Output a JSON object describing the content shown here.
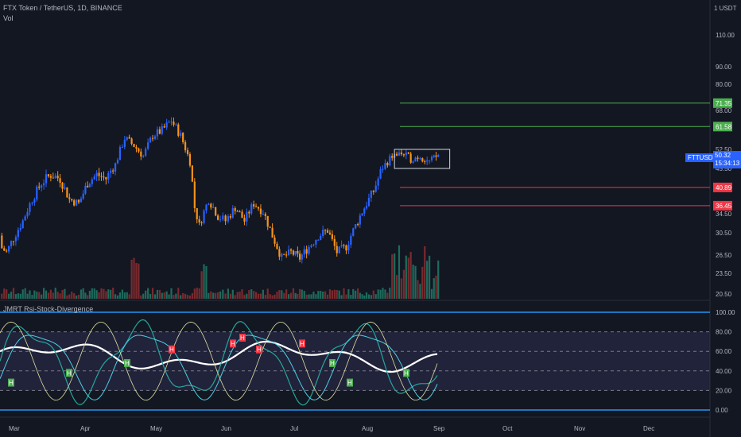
{
  "header": {
    "symbol_line": "FTX Token / TetherUS, 1D, BINANCE",
    "volume_label": "Vol",
    "currency": "1 USDT"
  },
  "indicator": {
    "title": "JMRT Rsi-Stock-Divergence"
  },
  "price_tag": {
    "symbol": "FTTUSDT",
    "price": "50.32",
    "countdown": "15:34:13"
  },
  "colors": {
    "bg": "#131722",
    "up": "#2962ff",
    "down": "#f7931a",
    "vol_up": "#1e6b5c",
    "vol_down": "#7a2a2e",
    "green_level": "#4caf50",
    "red_level": "#f23645",
    "rsi": "#ffffff",
    "k": "#26a69a",
    "d": "#4dd0e1",
    "fast": "#e0e0a0",
    "band": "#3d3a6b"
  },
  "chart_data": [
    {
      "type": "candlestick",
      "title": "FTX Token / TetherUS, 1D, BINANCE",
      "x_ticks": [
        "Mar",
        "Apr",
        "May",
        "Jun",
        "Jul",
        "Aug",
        "Sep",
        "Oct",
        "Nov",
        "Dec"
      ],
      "y_ticks": [
        "110.00",
        "90.00",
        "80.00",
        "68.00",
        "52.50",
        "45.50",
        "34.50",
        "30.50",
        "26.50",
        "23.50",
        "20.50"
      ],
      "price_levels": [
        {
          "label": "71.35",
          "value": 71.35,
          "kind": "resistance"
        },
        {
          "label": "61.58",
          "value": 61.58,
          "kind": "resistance"
        },
        {
          "label": "40.89",
          "value": 40.89,
          "kind": "support"
        },
        {
          "label": "36.45",
          "value": 36.45,
          "kind": "support"
        }
      ],
      "range_box": {
        "from": "Aug",
        "to": "Sep",
        "low": 45.5,
        "high": 52.5
      },
      "close_path": [
        {
          "date": "Feb 20",
          "close": 30
        },
        {
          "date": "Feb 28",
          "close": 27
        },
        {
          "date": "Mar 6",
          "close": 33
        },
        {
          "date": "Mar 10",
          "close": 38
        },
        {
          "date": "Mar 14",
          "close": 42
        },
        {
          "date": "Mar 18",
          "close": 44
        },
        {
          "date": "Mar 22",
          "close": 43
        },
        {
          "date": "Mar 26",
          "close": 38
        },
        {
          "date": "Mar 30",
          "close": 37
        },
        {
          "date": "Apr 3",
          "close": 42
        },
        {
          "date": "Apr 7",
          "close": 44
        },
        {
          "date": "Apr 11",
          "close": 43
        },
        {
          "date": "Apr 15",
          "close": 47
        },
        {
          "date": "Apr 19",
          "close": 57
        },
        {
          "date": "Apr 23",
          "close": 54
        },
        {
          "date": "Apr 27",
          "close": 50
        },
        {
          "date": "May 1",
          "close": 58
        },
        {
          "date": "May 5",
          "close": 60
        },
        {
          "date": "May 9",
          "close": 64
        },
        {
          "date": "May 13",
          "close": 58
        },
        {
          "date": "May 17",
          "close": 48
        },
        {
          "date": "May 19",
          "close": 36
        },
        {
          "date": "May 21",
          "close": 32
        },
        {
          "date": "May 25",
          "close": 38
        },
        {
          "date": "May 29",
          "close": 34
        },
        {
          "date": "Jun 2",
          "close": 33
        },
        {
          "date": "Jun 6",
          "close": 36
        },
        {
          "date": "Jun 10",
          "close": 33
        },
        {
          "date": "Jun 14",
          "close": 37
        },
        {
          "date": "Jun 18",
          "close": 35
        },
        {
          "date": "Jun 22",
          "close": 30
        },
        {
          "date": "Jun 26",
          "close": 26
        },
        {
          "date": "Jun 30",
          "close": 27
        },
        {
          "date": "Jul 4",
          "close": 26
        },
        {
          "date": "Jul 8",
          "close": 28
        },
        {
          "date": "Jul 12",
          "close": 30
        },
        {
          "date": "Jul 16",
          "close": 31
        },
        {
          "date": "Jul 20",
          "close": 27
        },
        {
          "date": "Jul 24",
          "close": 28
        },
        {
          "date": "Jul 28",
          "close": 32
        },
        {
          "date": "Aug 1",
          "close": 36
        },
        {
          "date": "Aug 5",
          "close": 40
        },
        {
          "date": "Aug 9",
          "close": 46
        },
        {
          "date": "Aug 13",
          "close": 50
        },
        {
          "date": "Aug 17",
          "close": 51
        },
        {
          "date": "Aug 21",
          "close": 49
        },
        {
          "date": "Aug 25",
          "close": 50
        },
        {
          "date": "Aug 29",
          "close": 48
        },
        {
          "date": "Sep 2",
          "close": 50.32
        }
      ]
    },
    {
      "type": "line",
      "title": "JMRT Rsi-Stock-Divergence",
      "y_ticks": [
        "100.00",
        "80.00",
        "60.00",
        "40.00",
        "20.00",
        "0.00"
      ],
      "ylim": [
        0,
        100
      ],
      "bands": [
        80,
        60,
        40,
        20
      ],
      "divergence_markers": [
        {
          "label": "H",
          "kind": "bull"
        },
        {
          "label": "H",
          "kind": "bull"
        },
        {
          "label": "H",
          "kind": "bull"
        },
        {
          "label": "H",
          "kind": "bear"
        },
        {
          "label": "H",
          "kind": "bear"
        },
        {
          "label": "H",
          "kind": "bear"
        },
        {
          "label": "H",
          "kind": "bear"
        },
        {
          "label": "H",
          "kind": "bear"
        },
        {
          "label": "H",
          "kind": "bull"
        },
        {
          "label": "H",
          "kind": "bull"
        },
        {
          "label": "H",
          "kind": "bull"
        }
      ]
    }
  ]
}
